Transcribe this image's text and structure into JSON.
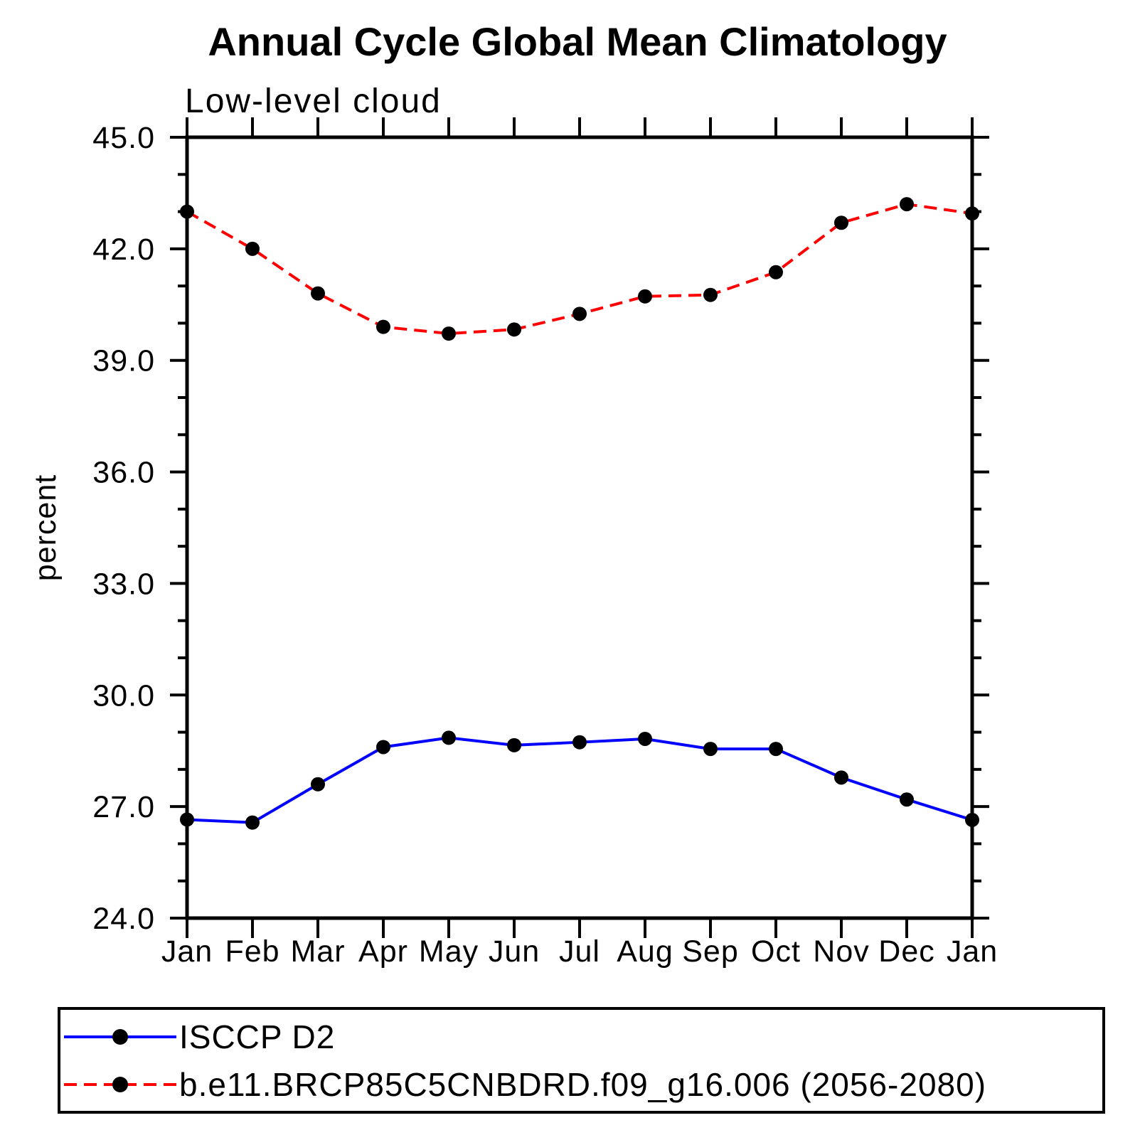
{
  "chart_data": {
    "type": "line",
    "title": "Annual Cycle Global Mean Climatology",
    "subtitle": "Low-level cloud",
    "ylabel": "percent",
    "xlabel": "",
    "ylim": [
      24.0,
      45.0
    ],
    "ytick_major_step": 3.0,
    "ytick_minor_step": 1.0,
    "ytick_major_labels": [
      "24.0",
      "27.0",
      "30.0",
      "33.0",
      "36.0",
      "39.0",
      "42.0",
      "45.0"
    ],
    "grid": false,
    "categories": [
      "Jan",
      "Feb",
      "Mar",
      "Apr",
      "May",
      "Jun",
      "Jul",
      "Aug",
      "Sep",
      "Oct",
      "Nov",
      "Dec",
      "Jan"
    ],
    "series": [
      {
        "name": "ISCCP D2",
        "color": "#0000ff",
        "line_style": "solid",
        "marker": "filled-circle",
        "marker_color": "#000000",
        "values": [
          26.65,
          26.57,
          27.6,
          28.6,
          28.85,
          28.65,
          28.73,
          28.82,
          28.55,
          28.55,
          27.78,
          27.19,
          26.64
        ]
      },
      {
        "name": "b.e11.BRCP85C5CNBDRD.f09_g16.006 (2056-2080)",
        "color": "#ff0000",
        "line_style": "dashed",
        "marker": "filled-circle",
        "marker_color": "#000000",
        "values": [
          43.0,
          42.0,
          40.8,
          39.9,
          39.72,
          39.83,
          40.25,
          40.72,
          40.76,
          41.37,
          42.7,
          43.2,
          42.95
        ]
      }
    ],
    "legend_position": "bottom",
    "colors": {
      "axis": "#000000",
      "background": "#ffffff"
    }
  }
}
